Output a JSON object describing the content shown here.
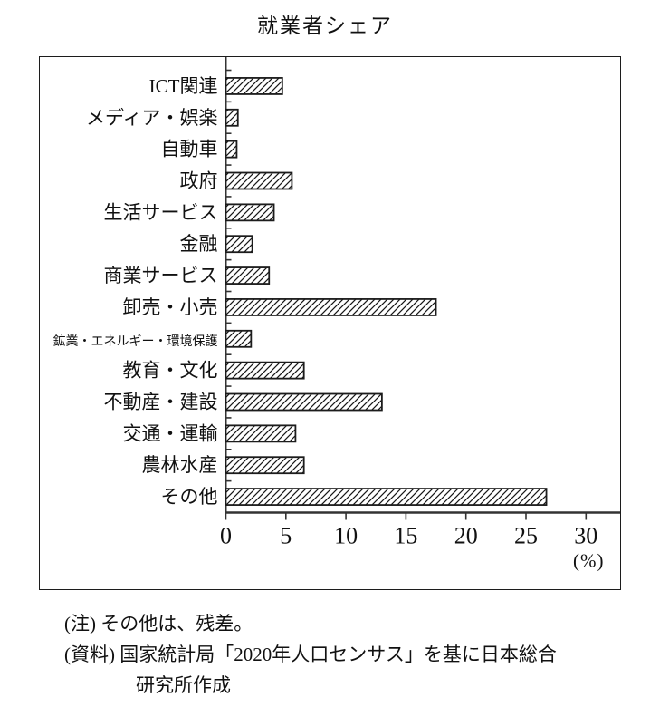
{
  "title": "就業者シェア",
  "chart_data": {
    "type": "bar",
    "orientation": "horizontal",
    "title": "就業者シェア",
    "categories": [
      "ICT関連",
      "メディア・娯楽",
      "自動車",
      "政府",
      "生活サービス",
      "金融",
      "商業サービス",
      "卸売・小売",
      "鉱業・エネルギー・環境保護",
      "教育・文化",
      "不動産・建設",
      "交通・運輸",
      "農林水産",
      "その他"
    ],
    "values": [
      4.7,
      1.0,
      0.9,
      5.5,
      4.0,
      2.2,
      3.6,
      17.5,
      2.1,
      6.5,
      13.0,
      5.8,
      6.5,
      26.7
    ],
    "xlabel": "(%)",
    "xlim": [
      0,
      33
    ],
    "xticks": [
      0,
      5,
      10,
      15,
      20,
      25,
      30
    ],
    "xtick_labels": [
      "0",
      "5",
      "10",
      "15",
      "20",
      "25",
      "30"
    ],
    "grid": false,
    "legend": false,
    "bar_pattern": "diagonal-hatch",
    "bar_fill": "#ffffff",
    "bar_stroke": "#1c1c1c",
    "axis_color": "#333333"
  },
  "notes": {
    "line1": "(注) その他は、残差。",
    "line2": "(資料) 国家統計局「2020年人口センサス」を基に日本総合",
    "line3": "研究所作成"
  }
}
